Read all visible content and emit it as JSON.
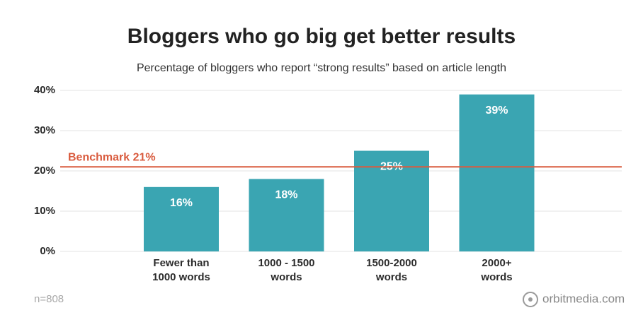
{
  "chart_data": {
    "type": "bar",
    "title": "Bloggers who go big get better results",
    "subtitle": "Percentage of bloggers who report “strong results” based on article length",
    "categories": [
      "Fewer than\n1000 words",
      "1000 - 1500\nwords",
      "1500-2000\nwords",
      "2000+\nwords"
    ],
    "values": [
      16,
      18,
      25,
      39
    ],
    "value_labels": [
      "16%",
      "18%",
      "25%",
      "39%"
    ],
    "color": "#3aa5b2",
    "ylim": [
      0,
      40
    ],
    "yticks": [
      {
        "value": 0,
        "label": "0%"
      },
      {
        "value": 10,
        "label": "10%"
      },
      {
        "value": 20,
        "label": "20%"
      },
      {
        "value": 30,
        "label": "30%"
      },
      {
        "value": 40,
        "label": "40%"
      }
    ],
    "grid": true,
    "benchmark": {
      "value": 21,
      "label": "Benchmark 21%",
      "color": "#d95b3e"
    },
    "footnote": "n=808",
    "source": "orbitmedia.com"
  }
}
